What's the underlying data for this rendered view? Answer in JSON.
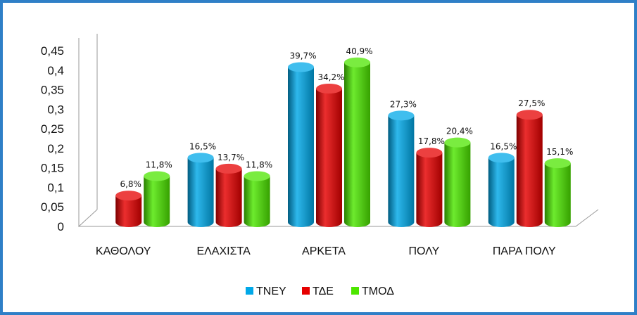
{
  "chart_data": {
    "type": "bar",
    "categories": [
      "ΚΑΘΟΛΟΥ",
      "ΕΛΑΧΙΣΤΑ",
      "ΑΡΚΕΤΑ",
      "ΠΟΛΥ",
      "ΠΑΡΑ ΠΟΛΥ"
    ],
    "series": [
      {
        "name": "ΤΝΕΥ",
        "color": "#00a8e8",
        "values": [
          null,
          0.165,
          0.397,
          0.273,
          0.165
        ],
        "labels": [
          "",
          "16,5%",
          "39,7%",
          "27,3%",
          "16,5%"
        ]
      },
      {
        "name": "ΤΔΕ",
        "color": "#e60000",
        "values": [
          0.068,
          0.137,
          0.342,
          0.178,
          0.275
        ],
        "labels": [
          "6,8%",
          "13,7%",
          "34,2%",
          "17,8%",
          "27,5%"
        ]
      },
      {
        "name": "ΤΜΟΔ",
        "color": "#4de600",
        "values": [
          0.118,
          0.118,
          0.409,
          0.204,
          0.151
        ],
        "labels": [
          "11,8%",
          "11,8%",
          "40,9%",
          "20,4%",
          "15,1%"
        ]
      }
    ],
    "yticks": [
      "0",
      "0,05",
      "0,1",
      "0,15",
      "0,2",
      "0,25",
      "0,3",
      "0,35",
      "0,4",
      "0,45"
    ],
    "ylim": [
      0,
      0.45
    ],
    "title": "",
    "xlabel": "",
    "ylabel": "",
    "legend": "bottom",
    "grid": false
  }
}
